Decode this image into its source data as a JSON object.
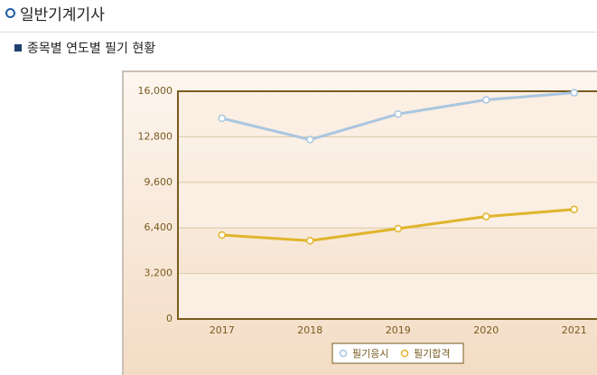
{
  "header": {
    "title": "일반기계기사"
  },
  "section": {
    "title": "종목별 연도별 필기 현황"
  },
  "chart_data": {
    "type": "line",
    "categories": [
      "2017",
      "2018",
      "2019",
      "2020",
      "2021"
    ],
    "series": [
      {
        "name": "필기응시",
        "color": "#a9c6e0",
        "values": [
          14100,
          12600,
          14400,
          15400,
          15900
        ]
      },
      {
        "name": "필기합격",
        "color": "#e0b52c",
        "values": [
          5900,
          5500,
          6350,
          7200,
          7700
        ]
      }
    ],
    "ylim": [
      0,
      16000
    ],
    "yticks": [
      0,
      {
        "value": 3200,
        "label": "3,200"
      },
      {
        "value": 6400,
        "label": "6,400"
      },
      {
        "value": 9600,
        "label": "9,600"
      },
      {
        "value": 12800,
        "label": "12,800"
      },
      {
        "value": 16000,
        "label": "16,000"
      }
    ],
    "grid": true,
    "legend": "bottom"
  }
}
